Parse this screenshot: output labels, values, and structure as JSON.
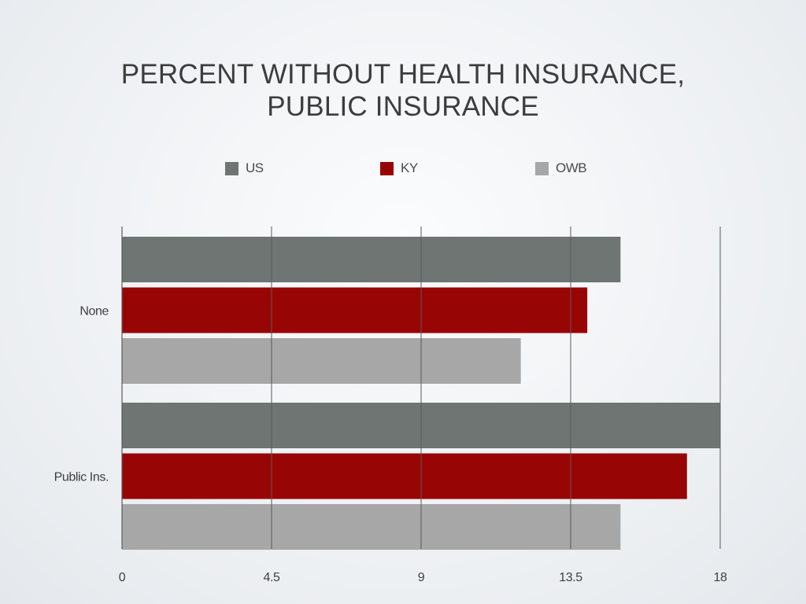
{
  "chart_data": {
    "type": "bar",
    "orientation": "horizontal",
    "title": "PERCENT WITHOUT HEALTH INSURANCE, PUBLIC INSURANCE",
    "title_lines": [
      "PERCENT WITHOUT HEALTH INSURANCE,",
      "PUBLIC INSURANCE"
    ],
    "categories": [
      "None",
      "Public Ins."
    ],
    "series": [
      {
        "name": "US",
        "color": "#6f7572",
        "values": [
          15,
          18
        ]
      },
      {
        "name": "KY",
        "color": "#980505",
        "values": [
          14,
          17
        ]
      },
      {
        "name": "OWB",
        "color": "#a7a7a7",
        "values": [
          12,
          15
        ]
      }
    ],
    "xlim": [
      0,
      18
    ],
    "xticks": [
      "0",
      "4.5",
      "9",
      "13.5",
      "18"
    ],
    "xtick_values": [
      0,
      4.5,
      9,
      13.5,
      18
    ],
    "grid": "vertical",
    "legend_position": "top"
  }
}
